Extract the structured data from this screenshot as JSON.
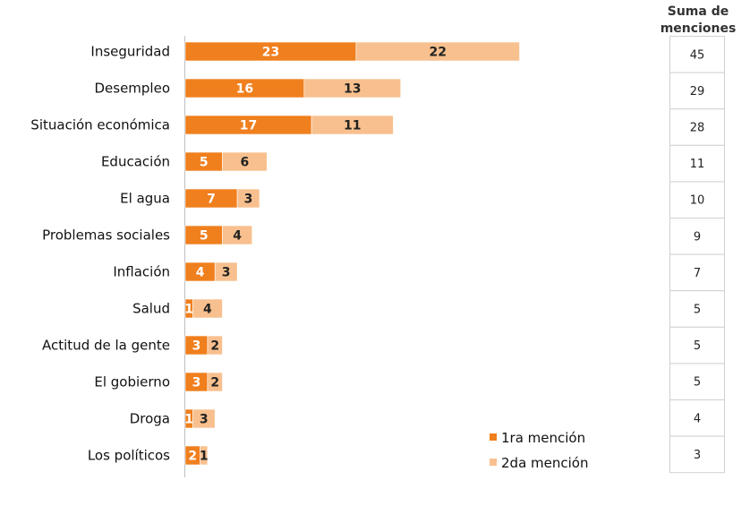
{
  "chart_data": {
    "type": "bar",
    "orientation": "horizontal",
    "stacked": true,
    "categories": [
      "Inseguridad",
      "Desempleo",
      "Situación económica",
      "Educación",
      "El agua",
      "Problemas sociales",
      "Inflación",
      "Salud",
      "Actitud de la gente",
      "El gobierno",
      "Droga",
      "Los políticos"
    ],
    "series": [
      {
        "name": "1ra mención",
        "values": [
          23,
          16,
          17,
          5,
          7,
          5,
          4,
          1,
          3,
          3,
          1,
          2
        ]
      },
      {
        "name": "2da mención",
        "values": [
          22,
          13,
          11,
          6,
          3,
          4,
          3,
          4,
          2,
          2,
          3,
          1
        ]
      }
    ],
    "totals_header": [
      "Suma de",
      "menciones"
    ],
    "totals": [
      45,
      29,
      28,
      11,
      10,
      9,
      7,
      5,
      5,
      5,
      4,
      3
    ],
    "legend_position": "bottom-right",
    "colors": {
      "series1": "#F07F1E",
      "series2": "#F8C08E",
      "label1": "#ffffff",
      "label2": "#222222",
      "axis": "#bfbfbf",
      "table_border": "#d0d0d0"
    }
  }
}
